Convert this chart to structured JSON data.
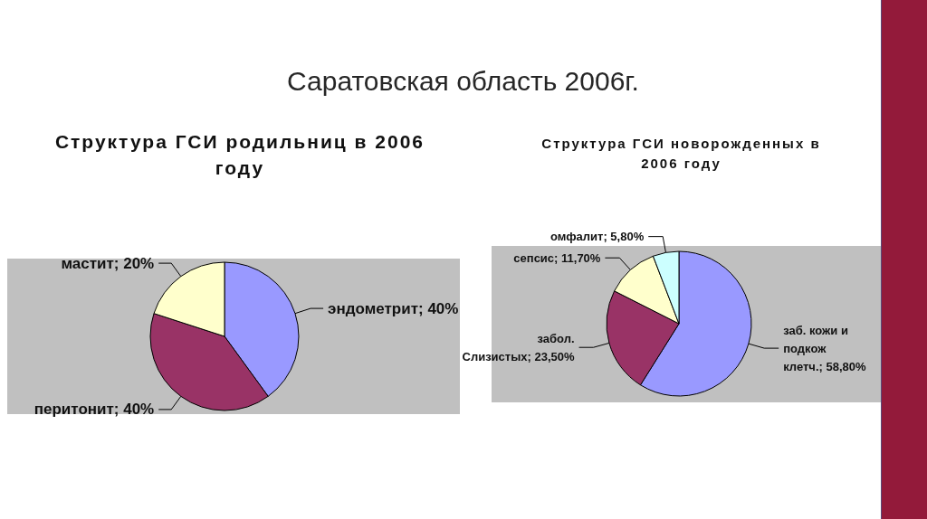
{
  "chart_data": [
    {
      "type": "other",
      "title": "Саратовская область 2006г."
    },
    {
      "type": "pie",
      "title": "Структура ГСИ родильниц в 2006 году",
      "categories": [
        "эндометрит",
        "перитонит",
        "мастит"
      ],
      "values": [
        40,
        40,
        20
      ],
      "value_labels": [
        "40%",
        "40%",
        "20%"
      ],
      "colors": [
        "#9999ff",
        "#993366",
        "#ffffcc"
      ]
    },
    {
      "type": "pie",
      "title": "Структура ГСИ новорожденных в 2006 году",
      "categories": [
        "заб. кожи и подкож клетч.",
        "забол. Слизистых",
        "сепсис",
        "омфалит"
      ],
      "values": [
        58.8,
        23.5,
        11.7,
        5.8
      ],
      "value_labels": [
        "58,80%",
        "23,50%",
        "11,70%",
        "5,80%"
      ],
      "colors": [
        "#9999ff",
        "#993366",
        "#ffffcc",
        "#ccffff"
      ]
    }
  ]
}
